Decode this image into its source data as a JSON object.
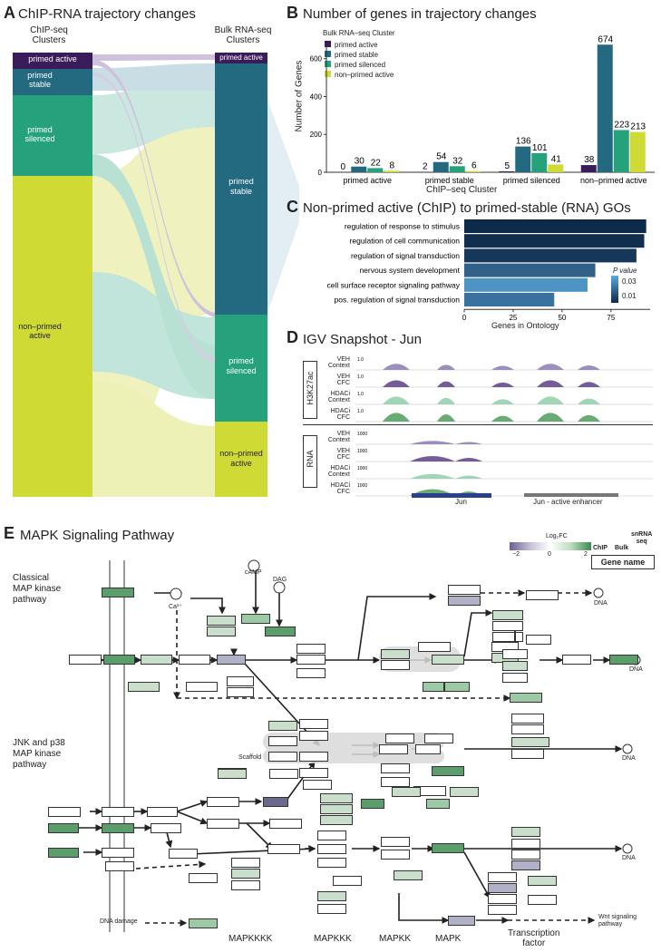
{
  "panel_a": {
    "letter": "A",
    "title": "ChIP-RNA trajectory changes",
    "left_header": "ChIP-seq\nClusters",
    "right_header": "Bulk RNA-seq\nClusters",
    "left_clusters": [
      "primed active",
      "primed\nstable",
      "primed\nsilenced",
      "non–primed\nactive"
    ],
    "right_clusters": [
      "primed active",
      "primed\nstable",
      "primed\nsilenced",
      "non–primed\nactive"
    ],
    "colors": {
      "primed_active": "#3b1c5a",
      "primed_stable": "#236a80",
      "primed_silenced": "#25a17c",
      "non_primed_active": "#cfdb34"
    }
  },
  "panel_b": {
    "letter": "B",
    "title": "Number of genes in trajectory changes",
    "legend_title": "Bulk RNA–seq Cluster",
    "legend": [
      "primed active",
      "primed stable",
      "primed silenced",
      "non–primed active"
    ],
    "xlabel": "ChIP–seq Cluster",
    "ylabel": "Number of Genes",
    "yticks": [
      "0",
      "200",
      "400",
      "600"
    ]
  },
  "panel_c": {
    "letter": "C",
    "title": "Non-primed active (ChIP) to primed-stable (RNA) GOs",
    "xlabel": "Genes in Ontology",
    "xticks": [
      "0",
      "25",
      "50",
      "75"
    ],
    "legend_title": "P value",
    "legend_ticks": [
      "0.03",
      "0.01"
    ]
  },
  "panel_d": {
    "letter": "D",
    "title": "IGV Snapshot - Jun",
    "group1": "H3K27ac",
    "group2": "RNA",
    "tracks": [
      {
        "label": "VEH\nContext",
        "scale": "1.0"
      },
      {
        "label": "VEH\nCFC",
        "scale": "1.0"
      },
      {
        "label": "HDACi\nContext",
        "scale": "1.0"
      },
      {
        "label": "HDACi\nCFC",
        "scale": "1.0"
      },
      {
        "label": "VEH\nContext",
        "scale": "1000"
      },
      {
        "label": "VEH\nCFC",
        "scale": "1000"
      },
      {
        "label": "HDACi\nContext",
        "scale": "1000"
      },
      {
        "label": "HDACi\nCFC",
        "scale": "1000"
      }
    ],
    "gene_label": "Jun",
    "enhancer_label": "Jun - active enhancer"
  },
  "panel_e": {
    "letter": "E",
    "title": "MAPK Signaling Pathway",
    "legend_title": "Log₂FC",
    "legend_ticks": [
      "−2",
      "0",
      "2"
    ],
    "legend_cols": [
      "ChIP",
      "Bulk",
      "snRNA\nseq"
    ],
    "legend_gene_box": "Gene name",
    "side_labels": [
      "Classical\nMAP kinase\npathway",
      "JNK and p38\nMAP kinase\npathway"
    ],
    "bottom_labels": [
      "MAPKKKK",
      "MAPKKK",
      "MAPKK",
      "MAPK",
      "Transcription\nfactor"
    ],
    "other_labels": {
      "ca": "Ca²⁺",
      "camp": "cAMP",
      "dag": "DAG",
      "scaffold": "Scaffold",
      "dna_damage": "DNA damage",
      "wnt": "Wnt signaling\npathway",
      "dna": "DNA"
    }
  },
  "chart_data": [
    {
      "type": "bar",
      "title": "Number of genes in trajectory changes",
      "xlabel": "ChIP–seq Cluster",
      "ylabel": "Number of Genes",
      "ylim": [
        0,
        680
      ],
      "categories": [
        "primed active",
        "primed stable",
        "primed silenced",
        "non–primed active"
      ],
      "series": [
        {
          "name": "primed active",
          "values": [
            0,
            2,
            5,
            38
          ],
          "color": "#3b1c5a"
        },
        {
          "name": "primed stable",
          "values": [
            30,
            54,
            136,
            674
          ],
          "color": "#236a80"
        },
        {
          "name": "primed silenced",
          "values": [
            22,
            32,
            101,
            223
          ],
          "color": "#25a17c"
        },
        {
          "name": "non–primed active",
          "values": [
            8,
            6,
            41,
            213
          ],
          "color": "#cfdb34"
        }
      ],
      "legend": "top-left"
    },
    {
      "type": "bar",
      "orientation": "horizontal",
      "title": "Non-primed active (ChIP) to primed-stable (RNA) GOs",
      "xlabel": "Genes in Ontology",
      "xlim": [
        0,
        95
      ],
      "categories": [
        "regulation of response to stimulus",
        "regulation of cell communication",
        "regulation of signal transduction",
        "nervous system development",
        "cell surface receptor signaling pathway",
        "pos. regulation of signal transduction"
      ],
      "values": [
        93,
        92,
        88,
        67,
        63,
        46
      ],
      "p_values": [
        0.005,
        0.006,
        0.008,
        0.018,
        0.03,
        0.022
      ]
    }
  ]
}
